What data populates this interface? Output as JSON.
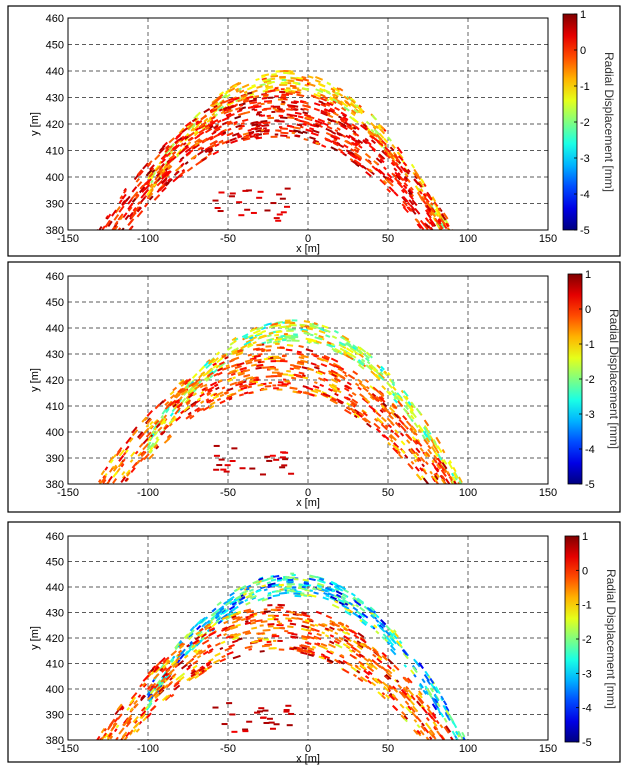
{
  "chart_data": [
    {
      "type": "scatter",
      "title": "",
      "xlabel": "x [m]",
      "ylabel": "y [m]",
      "xlim": [
        -150,
        150
      ],
      "ylim": [
        380,
        460
      ],
      "xticks": [
        "-150",
        "-100",
        "-50",
        "0",
        "50",
        "100",
        "150"
      ],
      "yticks": [
        "380",
        "390",
        "400",
        "410",
        "420",
        "430",
        "440",
        "450",
        "460"
      ],
      "grid": true,
      "colorbar": {
        "label": "Radial Displacement [mm]",
        "range": [
          -5,
          1
        ],
        "ticks": [
          "1",
          "0",
          "-1",
          "-2",
          "-3",
          "-4",
          "-5"
        ],
        "colormap": "jet"
      },
      "bands": [
        {
          "name": "",
          "apex_x": -15,
          "apex_y": 436,
          "curvature": 0.0055,
          "x_from": -100,
          "x_to": 90,
          "thickness": 8,
          "value_mean": -1.0,
          "value_spread": 0.9,
          "count": 380
        },
        {
          "name": "",
          "apex_x": -20,
          "apex_y": 424,
          "curvature": 0.0042,
          "x_from": -140,
          "x_to": 100,
          "thickness": 18,
          "value_mean": 0.2,
          "value_spread": 0.6,
          "count": 900
        }
      ]
    },
    {
      "type": "scatter",
      "title": "",
      "xlabel": "x [m]",
      "ylabel": "y [m]",
      "xlim": [
        -150,
        150
      ],
      "ylim": [
        380,
        460
      ],
      "xticks": [
        "-150",
        "-100",
        "-50",
        "0",
        "50",
        "100",
        "150"
      ],
      "yticks": [
        "380",
        "390",
        "400",
        "410",
        "420",
        "430",
        "440",
        "450",
        "460"
      ],
      "grid": true,
      "colorbar": {
        "label": "Radial Displacement [mm]",
        "range": [
          -5,
          1
        ],
        "ticks": [
          "1",
          "0",
          "-1",
          "-2",
          "-3",
          "-4",
          "-5"
        ],
        "colormap": "jet"
      },
      "bands": [
        {
          "name": "",
          "apex_x": -10,
          "apex_y": 439,
          "curvature": 0.0055,
          "x_from": -100,
          "x_to": 100,
          "thickness": 8,
          "value_mean": -1.6,
          "value_spread": 1.0,
          "count": 420
        },
        {
          "name": "",
          "apex_x": -20,
          "apex_y": 425,
          "curvature": 0.0042,
          "x_from": -140,
          "x_to": 100,
          "thickness": 18,
          "value_mean": -0.2,
          "value_spread": 0.8,
          "count": 750
        }
      ]
    },
    {
      "type": "scatter",
      "title": "",
      "xlabel": "x [m]",
      "ylabel": "y [m]",
      "xlim": [
        -150,
        150
      ],
      "ylim": [
        380,
        460
      ],
      "xticks": [
        "-150",
        "-100",
        "-50",
        "0",
        "50",
        "100",
        "150"
      ],
      "yticks": [
        "380",
        "390",
        "400",
        "410",
        "420",
        "430",
        "440",
        "450",
        "460"
      ],
      "grid": true,
      "colorbar": {
        "label": "Radial Displacement [mm]",
        "range": [
          -5,
          1
        ],
        "ticks": [
          "1",
          "0",
          "-1",
          "-2",
          "-3",
          "-4",
          "-5"
        ],
        "colormap": "jet"
      },
      "bands": [
        {
          "name": "",
          "apex_x": -10,
          "apex_y": 441,
          "curvature": 0.0055,
          "x_from": -100,
          "x_to": 100,
          "thickness": 9,
          "value_mean": -2.8,
          "value_spread": 1.4,
          "count": 480
        },
        {
          "name": "",
          "apex_x": -20,
          "apex_y": 424,
          "curvature": 0.0042,
          "x_from": -140,
          "x_to": 100,
          "thickness": 18,
          "value_mean": -0.3,
          "value_spread": 0.9,
          "count": 750
        }
      ]
    }
  ]
}
